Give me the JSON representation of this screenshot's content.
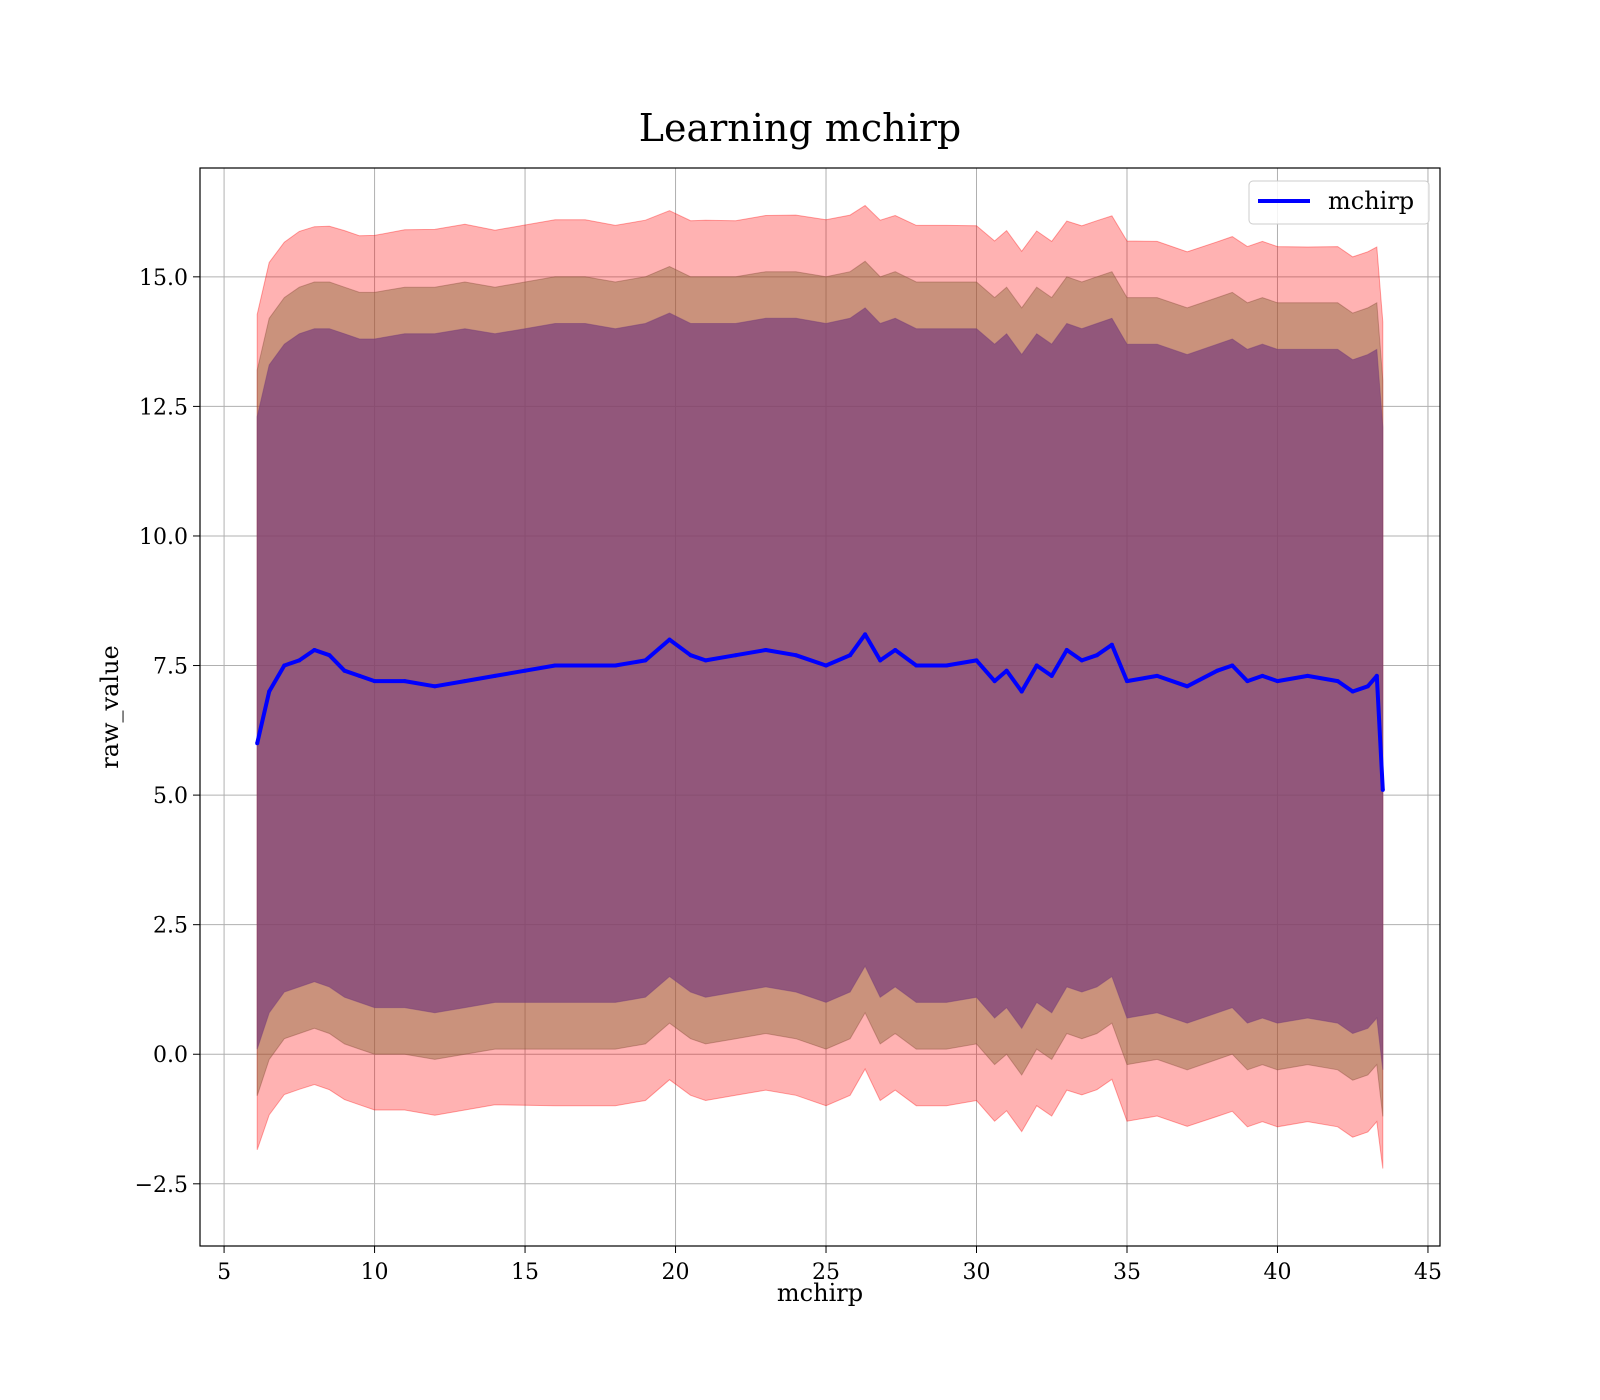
{
  "chart_data": {
    "type": "line",
    "title": "Learning mchirp",
    "xlabel": "mchirp",
    "ylabel": "raw_value",
    "xlim": [
      4.2,
      45.4
    ],
    "ylim": [
      -3.7,
      17.1
    ],
    "xticks": [
      5,
      10,
      15,
      20,
      25,
      30,
      35,
      40,
      45
    ],
    "xtick_labels": [
      "5",
      "10",
      "15",
      "20",
      "25",
      "30",
      "35",
      "40",
      "45"
    ],
    "yticks": [
      -2.5,
      0.0,
      2.5,
      5.0,
      7.5,
      10.0,
      12.5,
      15.0
    ],
    "ytick_labels": [
      "−2.5",
      "0.0",
      "2.5",
      "5.0",
      "7.5",
      "10.0",
      "12.5",
      "15.0"
    ],
    "grid": true,
    "legend": {
      "placement": "top-right",
      "entries": [
        "mchirp"
      ]
    },
    "colors": {
      "line": "#0000ff",
      "band_outer": "#ff0000",
      "band_inner": "#7a3f7a"
    },
    "series": [
      {
        "name": "mchirp",
        "x": [
          6.1,
          6.5,
          7.0,
          7.5,
          8.0,
          8.5,
          9.0,
          9.5,
          10.0,
          11.0,
          12.0,
          13.0,
          14.0,
          15.0,
          16.0,
          17.0,
          18.0,
          19.0,
          19.8,
          20.5,
          21.0,
          22.0,
          23.0,
          24.0,
          25.0,
          25.8,
          26.3,
          26.8,
          27.3,
          28.0,
          29.0,
          30.0,
          30.6,
          31.0,
          31.5,
          32.0,
          32.5,
          33.0,
          33.5,
          34.0,
          34.5,
          35.0,
          36.0,
          37.0,
          38.0,
          38.5,
          39.0,
          39.5,
          40.0,
          41.0,
          42.0,
          42.5,
          43.0,
          43.3,
          43.5
        ],
        "y": [
          6.0,
          7.0,
          7.5,
          7.6,
          7.8,
          7.7,
          7.4,
          7.3,
          7.2,
          7.2,
          7.1,
          7.2,
          7.3,
          7.4,
          7.5,
          7.5,
          7.5,
          7.6,
          8.0,
          7.7,
          7.6,
          7.7,
          7.8,
          7.7,
          7.5,
          7.7,
          8.1,
          7.6,
          7.8,
          7.5,
          7.5,
          7.6,
          7.2,
          7.4,
          7.0,
          7.5,
          7.3,
          7.8,
          7.6,
          7.7,
          7.9,
          7.2,
          7.3,
          7.1,
          7.4,
          7.5,
          7.2,
          7.3,
          7.2,
          7.3,
          7.2,
          7.0,
          7.1,
          7.3,
          5.1
        ],
        "y_mean_plus_1sd": [
          13.2,
          14.2,
          14.6,
          14.8,
          14.9,
          14.9,
          14.8,
          14.7,
          14.7,
          14.8,
          14.8,
          14.9,
          14.8,
          14.9,
          15.0,
          15.0,
          14.9,
          15.0,
          15.2,
          15.0,
          15.0,
          15.0,
          15.1,
          15.1,
          15.0,
          15.1,
          15.3,
          15.0,
          15.1,
          14.9,
          14.9,
          14.9,
          14.6,
          14.8,
          14.4,
          14.8,
          14.6,
          15.0,
          14.9,
          15.0,
          15.1,
          14.6,
          14.6,
          14.4,
          14.6,
          14.7,
          14.5,
          14.6,
          14.5,
          14.5,
          14.5,
          14.3,
          14.4,
          14.5,
          13.0
        ],
        "y_mean_minus_1sd": [
          -0.8,
          -0.1,
          0.3,
          0.4,
          0.5,
          0.4,
          0.2,
          0.1,
          0.0,
          0.0,
          -0.1,
          0.0,
          0.1,
          0.1,
          0.1,
          0.1,
          0.1,
          0.2,
          0.6,
          0.3,
          0.2,
          0.3,
          0.4,
          0.3,
          0.1,
          0.3,
          0.8,
          0.2,
          0.4,
          0.1,
          0.1,
          0.2,
          -0.2,
          0.0,
          -0.4,
          0.1,
          -0.1,
          0.4,
          0.3,
          0.4,
          0.6,
          -0.2,
          -0.1,
          -0.3,
          -0.1,
          0.0,
          -0.3,
          -0.2,
          -0.3,
          -0.2,
          -0.3,
          -0.5,
          -0.4,
          -0.2,
          -1.2
        ]
      }
    ]
  }
}
